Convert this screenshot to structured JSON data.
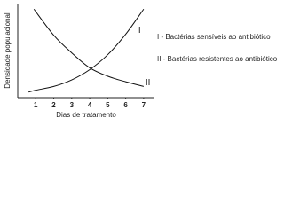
{
  "chart_data": {
    "type": "line",
    "x_label": "Dias de tratamento",
    "y_label": "Densidade populacional",
    "xlim": [
      0,
      7.5
    ],
    "xticks": [
      1,
      2,
      3,
      4,
      5,
      6,
      7
    ],
    "ylim": [
      0,
      10
    ],
    "series": [
      {
        "name": "I",
        "color": "#111111",
        "x": [
          0.6,
          1,
          2,
          3,
          4,
          5,
          6,
          7
        ],
        "values": [
          0.6,
          0.8,
          1.2,
          1.9,
          3.0,
          4.6,
          6.8,
          9.5
        ]
      },
      {
        "name": "II",
        "color": "#111111",
        "x": [
          0.9,
          2,
          3,
          4,
          5,
          6,
          7
        ],
        "values": [
          9.5,
          6.7,
          4.8,
          3.2,
          2.3,
          1.7,
          1.2
        ]
      }
    ],
    "legend": [
      "I - Bactérias sensíveis ao antibiótico",
      "II - Bactérias resistentes ao antibiótico"
    ]
  }
}
